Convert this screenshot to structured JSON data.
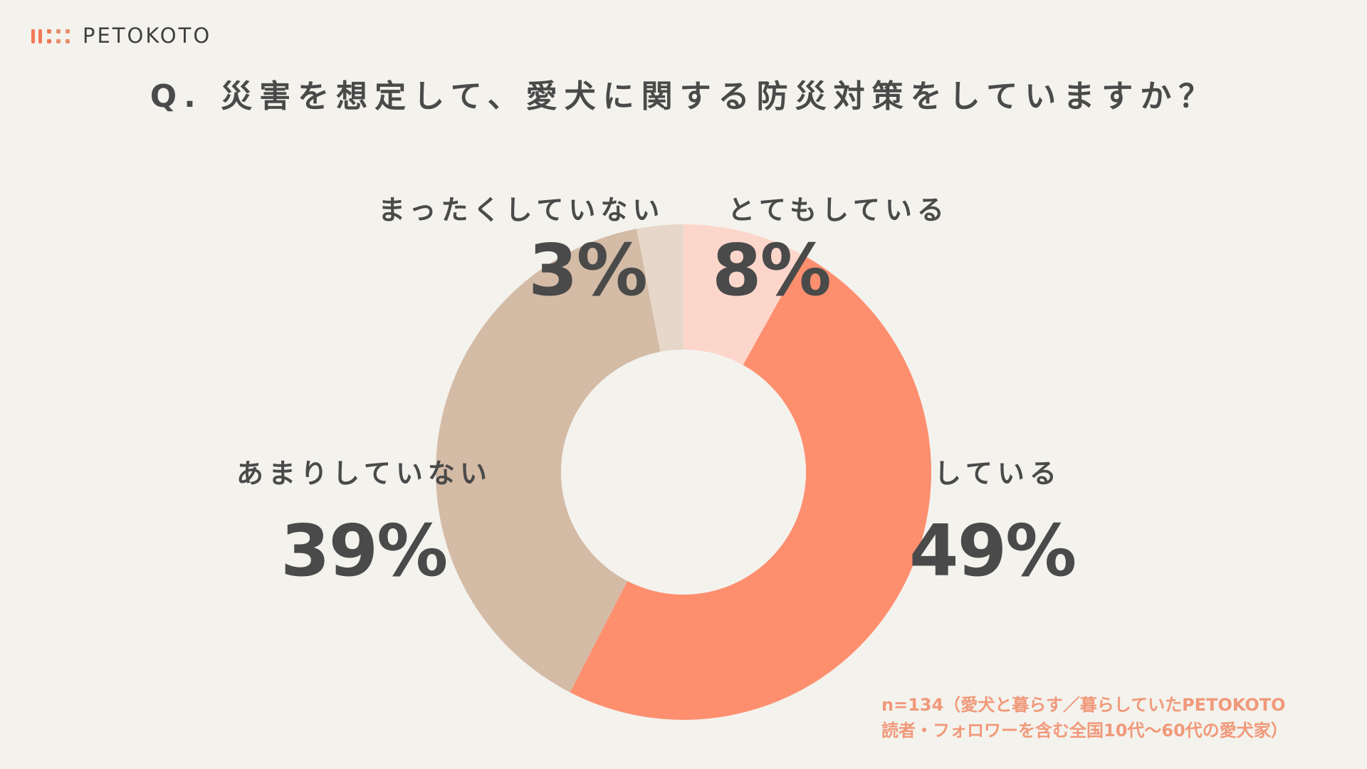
{
  "logo": {
    "text": "PETOKOTO",
    "colors": [
      "#f07a58",
      "#f07a58",
      "#e8906f"
    ]
  },
  "title": "Q. 災害を想定して、愛犬に関する防災対策をしていますか？",
  "chart_data": {
    "type": "pie",
    "donut": true,
    "slices": [
      {
        "label": "とてもしている",
        "value": 8,
        "display": "8%",
        "color": "#fdd6cb"
      },
      {
        "label": "している",
        "value": 49,
        "display": "49%",
        "color": "#fd8f6f"
      },
      {
        "label": "あまりしていない",
        "value": 39,
        "display": "39%",
        "color": "#d4bba6"
      },
      {
        "label": "まったくしていない",
        "value": 3,
        "display": "3%",
        "color": "#e6d7ca"
      }
    ]
  },
  "note": {
    "line1": "n=134（愛犬と暮らす／暮らしていたPETOKOTO",
    "line2": "読者・フォロワーを含む全国10代〜60代の愛犬家）"
  },
  "colors": {
    "background": "#f4f2ed",
    "text": "#4a4a4a",
    "note": "#f0997a"
  }
}
